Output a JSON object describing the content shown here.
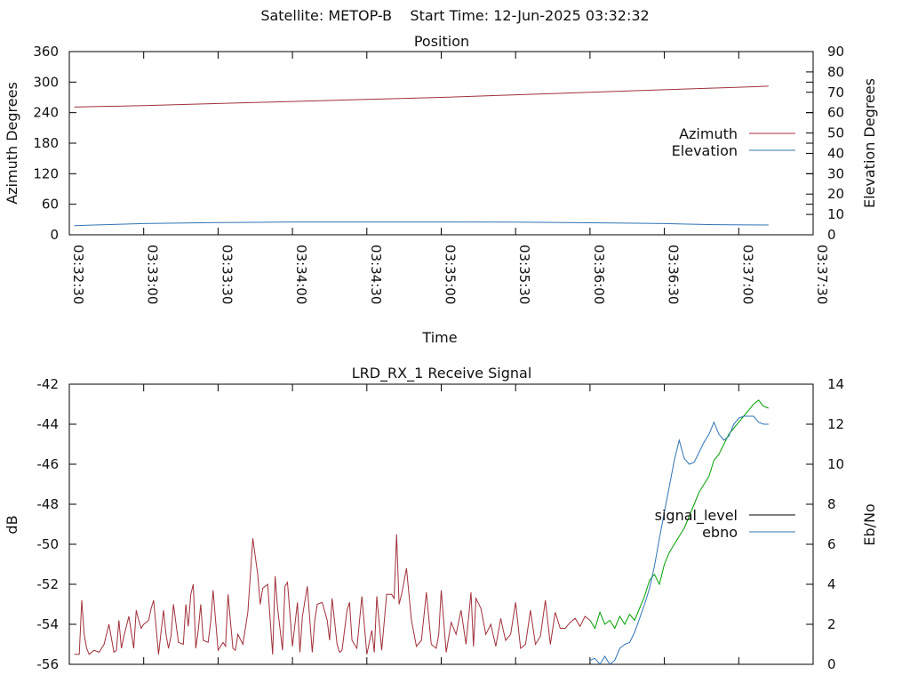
{
  "header": {
    "title": "Satellite: METOP-B    Start Time: 12-Jun-2025 03:32:32"
  },
  "colors": {
    "azimuth": "#a0303a",
    "elevation": "#2f74b5",
    "signal_red": "#a0303a",
    "signal_green": "#00a000",
    "ebno": "#2f74b5",
    "legend_signal_level": "#000000",
    "axis": "#000000",
    "background": "#ffffff"
  },
  "chart_data": [
    {
      "type": "line",
      "title": "Position",
      "xlabel": "Time",
      "ylabel_left": "Azimuth Degrees",
      "ylabel_right": "Elevation Degrees",
      "x_range_seconds": [
        0,
        300
      ],
      "x_tick_labels": [
        "03:32:30",
        "03:33:00",
        "03:33:30",
        "03:34:00",
        "03:34:30",
        "03:35:00",
        "03:35:30",
        "03:36:00",
        "03:36:30",
        "03:37:00",
        "03:37:30"
      ],
      "ylim_left": [
        0,
        360
      ],
      "yticks_left": [
        "0",
        "60",
        "120",
        "180",
        "240",
        "300",
        "360"
      ],
      "ylim_right": [
        0,
        90
      ],
      "yticks_right": [
        "0",
        "10",
        "20",
        "30",
        "40",
        "50",
        "60",
        "70",
        "80",
        "90"
      ],
      "legend": {
        "placement": "right-middle",
        "entries": [
          {
            "label": "Azimuth",
            "color": "#a0303a"
          },
          {
            "label": "Elevation",
            "color": "#2f74b5"
          }
        ]
      },
      "series": [
        {
          "name": "Azimuth",
          "axis": "left",
          "x": [
            2,
            30,
            60,
            90,
            120,
            150,
            180,
            210,
            240,
            270,
            282
          ],
          "values": [
            251,
            254,
            258,
            262,
            266,
            270,
            275,
            280,
            285,
            290,
            292
          ]
        },
        {
          "name": "Elevation",
          "axis": "right",
          "x": [
            2,
            10,
            30,
            60,
            90,
            120,
            150,
            180,
            200,
            220,
            240,
            260,
            282
          ],
          "values": [
            4.5,
            4.8,
            5.5,
            6.0,
            6.3,
            6.3,
            6.3,
            6.2,
            6.0,
            5.8,
            5.5,
            5.0,
            4.8
          ]
        }
      ]
    },
    {
      "type": "line",
      "title": "LRD_RX_1 Receive Signal",
      "ylabel_left": "dB",
      "ylabel_right": "Eb/No",
      "x_range_seconds": [
        0,
        300
      ],
      "ylim_left": [
        -56,
        -42
      ],
      "yticks_left": [
        "-56",
        "-54",
        "-52",
        "-50",
        "-48",
        "-46",
        "-44",
        "-42"
      ],
      "ylim_right": [
        0,
        14
      ],
      "yticks_right": [
        "0",
        "2",
        "4",
        "6",
        "8",
        "10",
        "12",
        "14"
      ],
      "legend": {
        "placement": "right-middle",
        "entries": [
          {
            "label": "signal_level",
            "color": "#000000"
          },
          {
            "label": "ebno",
            "color": "#2f74b5"
          }
        ]
      },
      "series": [
        {
          "name": "signal_level",
          "axis": "left",
          "x": [
            2,
            4,
            5,
            6,
            7,
            8,
            10,
            12,
            14,
            16,
            18,
            19,
            20,
            21,
            22,
            24,
            26,
            27,
            28,
            29,
            30,
            32,
            33,
            34,
            36,
            38,
            39,
            40,
            41,
            42,
            44,
            46,
            47,
            48,
            49,
            50,
            51,
            52,
            53,
            54,
            56,
            57,
            58,
            60,
            62,
            63,
            64,
            66,
            67,
            68,
            70,
            72,
            74,
            76,
            77,
            78,
            80,
            82,
            83,
            84,
            86,
            87,
            88,
            90,
            92,
            93,
            94,
            96,
            98,
            99,
            100,
            102,
            104,
            105,
            106,
            108,
            109,
            110,
            112,
            113,
            114,
            116,
            118,
            120,
            122,
            123,
            124,
            126,
            128,
            130,
            131,
            132,
            133,
            134,
            136,
            138,
            140,
            142,
            144,
            146,
            148,
            149,
            150,
            152,
            154,
            156,
            158,
            160,
            162,
            163,
            164,
            166,
            168,
            170,
            172,
            174,
            175,
            176,
            178,
            180,
            182,
            184,
            186,
            188,
            190,
            192,
            194,
            196,
            198,
            200,
            202,
            204,
            206,
            208,
            210,
            212,
            214,
            216,
            218,
            220,
            222,
            224,
            226,
            228,
            230,
            232,
            234,
            236,
            238,
            240,
            242,
            244,
            246,
            248,
            250,
            252,
            254,
            256,
            258,
            260,
            262,
            264,
            266,
            268,
            270,
            272,
            274,
            276,
            278,
            280,
            282
          ],
          "values": [
            -55.5,
            -55.5,
            -52.8,
            -54.5,
            -55.2,
            -55.5,
            -55.3,
            -55.4,
            -55.0,
            -54.0,
            -55.4,
            -55.3,
            -53.8,
            -55.2,
            -54.6,
            -53.6,
            -55.2,
            -53.3,
            -53.8,
            -54.2,
            -54.0,
            -53.8,
            -53.2,
            -52.8,
            -55.5,
            -53.3,
            -54.5,
            -55.2,
            -54.6,
            -53.0,
            -54.9,
            -55.0,
            -53.0,
            -54.1,
            -52.5,
            -52.0,
            -55.2,
            -54.3,
            -53.0,
            -54.8,
            -54.9,
            -53.9,
            -52.3,
            -55.3,
            -54.9,
            -55.1,
            -52.5,
            -55.2,
            -55.3,
            -54.5,
            -55.0,
            -53.4,
            -49.7,
            -51.5,
            -53.0,
            -52.2,
            -52.0,
            -55.5,
            -51.6,
            -53.2,
            -55.3,
            -52.1,
            -51.9,
            -55.1,
            -52.9,
            -55.4,
            -53.6,
            -52.1,
            -55.4,
            -53.8,
            -53.0,
            -52.9,
            -53.8,
            -54.8,
            -52.7,
            -55.0,
            -55.4,
            -55.3,
            -53.3,
            -52.9,
            -54.8,
            -55.2,
            -52.6,
            -55.5,
            -54.3,
            -55.4,
            -52.6,
            -55.3,
            -52.5,
            -52.5,
            -52.7,
            -49.5,
            -53.0,
            -52.5,
            -51.2,
            -53.8,
            -55.1,
            -54.8,
            -52.4,
            -55.0,
            -55.2,
            -54.5,
            -52.3,
            -55.4,
            -53.9,
            -54.5,
            -53.3,
            -55.0,
            -52.4,
            -55.1,
            -52.7,
            -53.2,
            -54.5,
            -54.0,
            -55.1,
            -53.7,
            -54.3,
            -54.8,
            -54.5,
            -52.9,
            -55.2,
            -55.0,
            -53.3,
            -55.0,
            -54.6,
            -52.8,
            -55.0,
            -53.4,
            -54.2,
            -54.2,
            -53.9,
            -53.7,
            -54.1,
            -53.6,
            -53.8,
            -54.2,
            -53.4,
            -54.0,
            -53.8,
            -54.2,
            -53.6,
            -54.0,
            -53.5,
            -53.8,
            -53.2,
            -52.6,
            -51.8,
            -51.5,
            -52.0,
            -51.0,
            -50.4,
            -50.0,
            -49.6,
            -49.2,
            -48.6,
            -48.0,
            -47.4,
            -47.0,
            -46.6,
            -45.8,
            -45.5,
            -45.0,
            -44.5,
            -44.2,
            -43.9,
            -43.6,
            -43.3,
            -43.0,
            -42.8,
            -43.1,
            -43.2
          ],
          "segments": [
            {
              "x_from": 2,
              "x_to": 210,
              "color": "#a0303a"
            },
            {
              "x_from": 210,
              "x_to": 282,
              "color": "#00a000"
            }
          ]
        },
        {
          "name": "ebno",
          "axis": "right",
          "x": [
            210,
            212,
            214,
            216,
            218,
            220,
            222,
            224,
            226,
            228,
            230,
            232,
            234,
            236,
            238,
            240,
            242,
            244,
            246,
            248,
            250,
            252,
            254,
            256,
            258,
            260,
            262,
            264,
            266,
            268,
            270,
            272,
            274,
            276,
            278,
            280,
            282
          ],
          "values": [
            0.2,
            0.3,
            0.0,
            0.4,
            0.0,
            0.2,
            0.8,
            1.0,
            1.1,
            1.6,
            2.3,
            3.0,
            3.8,
            4.9,
            6.3,
            7.6,
            8.9,
            10.2,
            11.2,
            10.3,
            10.0,
            10.1,
            10.6,
            11.1,
            11.5,
            12.1,
            11.5,
            11.2,
            11.4,
            12.0,
            12.3,
            12.4,
            12.4,
            12.4,
            12.1,
            12.0,
            12.0
          ]
        }
      ]
    }
  ]
}
